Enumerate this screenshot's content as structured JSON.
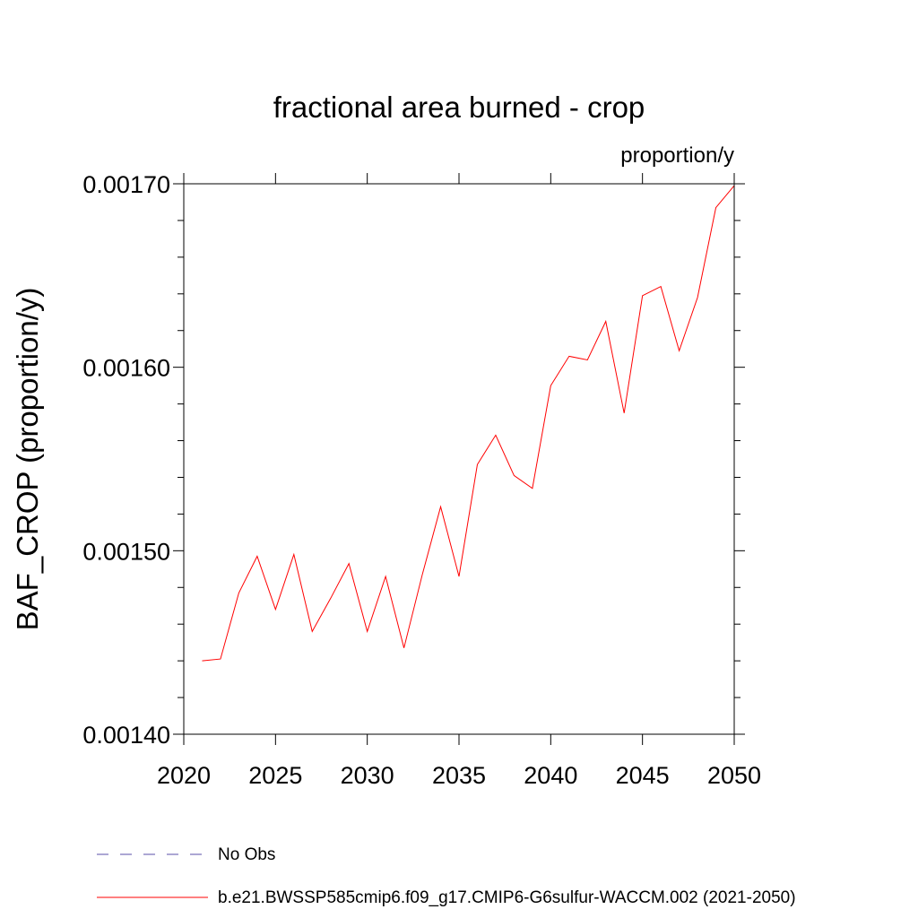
{
  "chart_data": {
    "type": "line",
    "title": "fractional area burned - crop",
    "units_label": "proportion/y",
    "ylabel": "BAF_CROP  (proportion/y)",
    "xlabel": "",
    "xlim": [
      2020,
      2050
    ],
    "ylim": [
      0.0014,
      0.0017
    ],
    "x_ticks": [
      "2020",
      "2025",
      "2030",
      "2035",
      "2040",
      "2045",
      "2050"
    ],
    "y_ticks": [
      "0.00140",
      "0.00150",
      "0.00160",
      "0.00170"
    ],
    "grid": false,
    "legend_position": "bottom",
    "series": [
      {
        "name": "No Obs",
        "color": "#5a4fa8",
        "style": "dashed",
        "x": [],
        "values": []
      },
      {
        "name": "b.e21.BWSSP585cmip6.f09_g17.CMIP6-G6sulfur-WACCM.002 (2021-2050)",
        "color": "#ff0000",
        "style": "solid",
        "x": [
          2021,
          2022,
          2023,
          2024,
          2025,
          2026,
          2027,
          2028,
          2029,
          2030,
          2031,
          2032,
          2033,
          2034,
          2035,
          2036,
          2037,
          2038,
          2039,
          2040,
          2041,
          2042,
          2043,
          2044,
          2045,
          2046,
          2047,
          2048,
          2049,
          2050
        ],
        "values": [
          0.00144,
          0.001441,
          0.001477,
          0.001497,
          0.001468,
          0.001498,
          0.001456,
          0.001474,
          0.001493,
          0.001456,
          0.001486,
          0.001447,
          0.001487,
          0.001524,
          0.001486,
          0.001547,
          0.001563,
          0.001541,
          0.001534,
          0.00159,
          0.001606,
          0.001604,
          0.001625,
          0.001575,
          0.001639,
          0.001644,
          0.001609,
          0.001638,
          0.001687,
          0.001699
        ]
      }
    ]
  }
}
